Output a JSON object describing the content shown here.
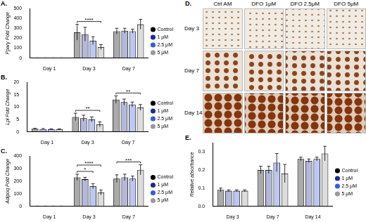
{
  "chart_data": [
    {
      "panel": "A.",
      "type": "bar",
      "y_label": "Pparγ Fold Change",
      "categories": [
        "Day 1",
        "Day 3",
        "Day 7"
      ],
      "series": [
        {
          "name": "Control",
          "color": "#000000",
          "values": [
            1,
            260,
            270
          ],
          "errors": [
            0.5,
            80,
            30
          ]
        },
        {
          "name": "1 μM",
          "color": "#1f2a8c",
          "values": [
            1,
            240,
            275
          ],
          "errors": [
            0.5,
            70,
            25
          ]
        },
        {
          "name": "2.5 μM",
          "color": "#3a5bd9",
          "values": [
            1,
            175,
            270
          ],
          "errors": [
            0.5,
            40,
            20
          ]
        },
        {
          "name": "5 μM",
          "color": "#9a9a9a",
          "values": [
            1,
            110,
            340
          ],
          "errors": [
            0.5,
            25,
            50
          ]
        }
      ],
      "ylim": [
        0,
        500
      ],
      "yticks": [
        0,
        100,
        200,
        300,
        400,
        500
      ],
      "grid": false,
      "legend": "right",
      "annotations": [
        {
          "text": "****",
          "category": "Day 3",
          "from": "Control",
          "to": "5 μM"
        }
      ]
    },
    {
      "panel": "B.",
      "type": "bar",
      "y_label": "Lpl Fold Change",
      "categories": [
        "Day 1",
        "Day 3",
        "Day 7"
      ],
      "series": [
        {
          "name": "Control",
          "color": "#000000",
          "values": [
            1.2,
            6,
            13
          ],
          "errors": [
            0.2,
            1.5,
            1.5
          ]
        },
        {
          "name": "1 μM",
          "color": "#1f2a8c",
          "values": [
            1.1,
            5.5,
            12
          ],
          "errors": [
            0.2,
            1.2,
            1.2
          ]
        },
        {
          "name": "2.5 μM",
          "color": "#3a5bd9",
          "values": [
            1,
            5,
            11
          ],
          "errors": [
            0.2,
            1,
            1
          ]
        },
        {
          "name": "5 μM",
          "color": "#9a9a9a",
          "values": [
            1,
            3,
            9.8
          ],
          "errors": [
            0.2,
            1,
            1.2
          ]
        }
      ],
      "ylim": [
        0,
        20
      ],
      "yticks": [
        0,
        5,
        10,
        15,
        20
      ],
      "grid": false,
      "legend": "right",
      "annotations": [
        {
          "text": "**",
          "category": "Day 3",
          "from": "Control",
          "to": "5 μM"
        },
        {
          "text": "**",
          "category": "Day 7",
          "from": "Control",
          "to": "5 μM"
        }
      ]
    },
    {
      "panel": "C.",
      "type": "bar",
      "y_label": "Adipoq Fold Change",
      "categories": [
        "Day 1",
        "Day 3",
        "Day 7"
      ],
      "series": [
        {
          "name": "Control",
          "color": "#000000",
          "values": [
            1,
            230,
            220
          ],
          "errors": [
            0.5,
            25,
            30
          ]
        },
        {
          "name": "1 μM",
          "color": "#1f2a8c",
          "values": [
            1,
            215,
            230
          ],
          "errors": [
            0.5,
            15,
            25
          ]
        },
        {
          "name": "2.5 μM",
          "color": "#3a5bd9",
          "values": [
            1,
            160,
            220
          ],
          "errors": [
            0.5,
            20,
            20
          ]
        },
        {
          "name": "5 μM",
          "color": "#9a9a9a",
          "values": [
            1,
            110,
            290
          ],
          "errors": [
            0.5,
            20,
            40
          ]
        }
      ],
      "ylim": [
        0,
        400
      ],
      "yticks": [
        0,
        100,
        200,
        300,
        400
      ],
      "grid": false,
      "legend": "right",
      "annotations": [
        {
          "text": "*",
          "category": "Day 3",
          "from": "Control",
          "to": "2.5 μM"
        },
        {
          "text": "****",
          "category": "Day 3",
          "from": "Control",
          "to": "5 μM"
        },
        {
          "text": "***",
          "category": "Day 7",
          "from": "Control",
          "to": "5 μM"
        }
      ]
    },
    {
      "panel": "E.",
      "type": "bar",
      "y_label": "Relative absorbance",
      "categories": [
        "Day 3",
        "Day 7",
        "Day 14"
      ],
      "series": [
        {
          "name": "Control",
          "color": "#000000",
          "values": [
            0.09,
            0.2,
            0.26
          ],
          "errors": [
            0.01,
            0.02,
            0.01
          ]
        },
        {
          "name": "1 μM",
          "color": "#1f2a8c",
          "values": [
            0.085,
            0.2,
            0.25
          ],
          "errors": [
            0.005,
            0.02,
            0.01
          ]
        },
        {
          "name": "2.5 μM",
          "color": "#3a5bd9",
          "values": [
            0.085,
            0.24,
            0.26
          ],
          "errors": [
            0.005,
            0.05,
            0.01
          ]
        },
        {
          "name": "5 μM",
          "color": "#9a9a9a",
          "values": [
            0.085,
            0.18,
            0.29
          ],
          "errors": [
            0.005,
            0.05,
            0.04
          ]
        }
      ],
      "ylim": [
        0,
        0.35
      ],
      "yticks": [
        {
          "value": 0,
          "label": "0.0"
        },
        0.1,
        0.2,
        0.3
      ],
      "grid": false,
      "legend": "right"
    }
  ],
  "image_panel": {
    "panel": "D.",
    "columns": [
      "Ctrl AM",
      "DFO 1μM",
      "DFO 2.5μM",
      "DFO 5μM"
    ],
    "rows": [
      "Day 3",
      "Day 7",
      "Day 14"
    ]
  }
}
